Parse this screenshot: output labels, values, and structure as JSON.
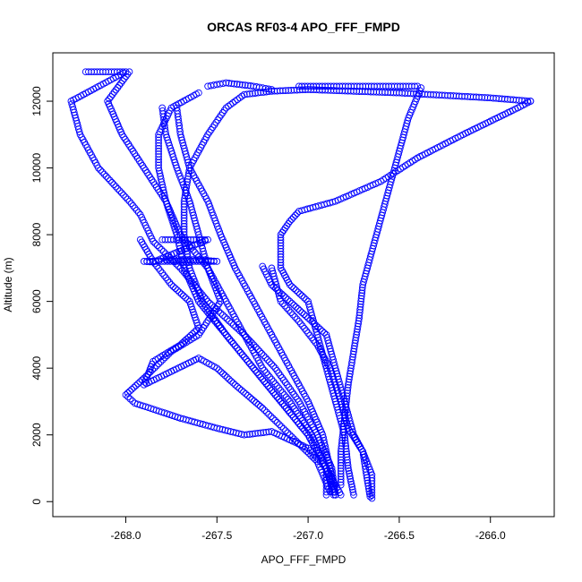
{
  "chart_data": {
    "type": "scatter",
    "title": "ORCAS RF03-4 APO_FFF_FMPD",
    "xlabel": "APO_FFF_FMPD",
    "ylabel": "Altitude (m)",
    "xlim": [
      -268.4,
      -265.65
    ],
    "ylim": [
      -450,
      13450
    ],
    "xticks": [
      -268.0,
      -267.5,
      -267.0,
      -266.5,
      -266.0
    ],
    "xtick_labels": [
      "-268.0",
      "-267.5",
      "-267.0",
      "-266.5",
      "-266.0"
    ],
    "yticks": [
      0,
      2000,
      4000,
      6000,
      8000,
      10000,
      12000
    ],
    "ytick_labels": [
      "0",
      "2000",
      "4000",
      "6000",
      "8000",
      "10000",
      "12000"
    ],
    "marker": "open-circle",
    "point_color": "#0000ff",
    "grid": false,
    "series": [
      {
        "profile": "far-left-descent",
        "points": [
          [
            -268.22,
            12880
          ],
          [
            -268.0,
            12880
          ],
          [
            -268.3,
            12000
          ],
          [
            -268.25,
            11000
          ],
          [
            -268.15,
            10000
          ],
          [
            -267.98,
            9000
          ],
          [
            -267.92,
            8600
          ],
          [
            -267.85,
            7800
          ],
          [
            -267.7,
            7000
          ],
          [
            -267.55,
            6000
          ],
          [
            -267.35,
            5000
          ],
          [
            -267.18,
            4000
          ],
          [
            -267.05,
            3000
          ],
          [
            -266.95,
            2000
          ],
          [
            -266.87,
            1000
          ],
          [
            -266.85,
            200
          ]
        ]
      },
      {
        "profile": "left-loop-low",
        "points": [
          [
            -267.98,
            12880
          ],
          [
            -268.1,
            12000
          ],
          [
            -268.02,
            11000
          ],
          [
            -267.9,
            10000
          ],
          [
            -267.78,
            9000
          ],
          [
            -267.7,
            8000
          ],
          [
            -267.55,
            7000
          ],
          [
            -267.48,
            6000
          ],
          [
            -267.6,
            5000
          ],
          [
            -267.75,
            4500
          ],
          [
            -267.9,
            3700
          ],
          [
            -268.0,
            3200
          ],
          [
            -267.95,
            2950
          ],
          [
            -267.7,
            2500
          ],
          [
            -267.5,
            2200
          ],
          [
            -267.35,
            2000
          ],
          [
            -267.2,
            2100
          ],
          [
            -267.0,
            1600
          ],
          [
            -266.9,
            1000
          ],
          [
            -266.9,
            200
          ]
        ]
      },
      {
        "profile": "left-loop-mid",
        "points": [
          [
            -267.92,
            7850
          ],
          [
            -267.85,
            7200
          ],
          [
            -267.75,
            6500
          ],
          [
            -267.65,
            6000
          ],
          [
            -267.6,
            5200
          ],
          [
            -267.7,
            4700
          ],
          [
            -267.85,
            4200
          ],
          [
            -267.9,
            3500
          ],
          [
            -267.75,
            3900
          ],
          [
            -267.6,
            4300
          ],
          [
            -267.5,
            4000
          ],
          [
            -267.4,
            3500
          ],
          [
            -267.25,
            2800
          ],
          [
            -267.1,
            2000
          ],
          [
            -266.95,
            1200
          ],
          [
            -266.88,
            300
          ]
        ]
      },
      {
        "profile": "upper-steep-descent",
        "points": [
          [
            -267.6,
            12250
          ],
          [
            -267.75,
            11800
          ],
          [
            -267.82,
            11000
          ],
          [
            -267.82,
            10000
          ],
          [
            -267.78,
            9000
          ],
          [
            -267.72,
            8000
          ],
          [
            -267.68,
            7000
          ],
          [
            -267.6,
            6000
          ],
          [
            -267.45,
            5000
          ],
          [
            -267.3,
            4000
          ],
          [
            -267.15,
            3000
          ],
          [
            -267.0,
            2000
          ],
          [
            -266.9,
            1000
          ],
          [
            -266.82,
            200
          ]
        ]
      },
      {
        "profile": "inner-descent-1",
        "points": [
          [
            -267.8,
            11800
          ],
          [
            -267.78,
            11000
          ],
          [
            -267.72,
            10000
          ],
          [
            -267.65,
            9000
          ],
          [
            -267.6,
            8000
          ],
          [
            -267.55,
            7000
          ],
          [
            -267.45,
            6000
          ],
          [
            -267.35,
            5000
          ],
          [
            -267.25,
            4000
          ],
          [
            -267.1,
            3000
          ],
          [
            -266.98,
            2000
          ],
          [
            -266.9,
            1000
          ],
          [
            -266.86,
            200
          ]
        ]
      },
      {
        "profile": "inner-descent-2",
        "points": [
          [
            -267.72,
            11800
          ],
          [
            -267.7,
            11000
          ],
          [
            -267.65,
            10000
          ],
          [
            -267.55,
            9000
          ],
          [
            -267.48,
            8000
          ],
          [
            -267.4,
            7000
          ],
          [
            -267.3,
            6000
          ],
          [
            -267.2,
            5000
          ],
          [
            -267.1,
            4000
          ],
          [
            -267.0,
            3000
          ],
          [
            -266.92,
            2000
          ],
          [
            -266.88,
            1000
          ],
          [
            -266.85,
            200
          ]
        ]
      },
      {
        "profile": "ascent-to-top",
        "points": [
          [
            -266.85,
            200
          ],
          [
            -266.9,
            1000
          ],
          [
            -267.0,
            2000
          ],
          [
            -267.15,
            3000
          ],
          [
            -267.3,
            4000
          ],
          [
            -267.45,
            5000
          ],
          [
            -267.58,
            6000
          ],
          [
            -267.65,
            7000
          ],
          [
            -267.68,
            8000
          ],
          [
            -267.68,
            9000
          ],
          [
            -267.65,
            10000
          ],
          [
            -267.55,
            11000
          ],
          [
            -267.45,
            11800
          ],
          [
            -267.35,
            12200
          ],
          [
            -267.2,
            12300
          ],
          [
            -267.0,
            12350
          ],
          [
            -266.5,
            12250
          ],
          [
            -266.0,
            12100
          ],
          [
            -265.78,
            12000
          ]
        ]
      },
      {
        "profile": "right-diagonal-descent",
        "points": [
          [
            -265.78,
            12000
          ],
          [
            -265.85,
            11800
          ],
          [
            -266.0,
            11400
          ],
          [
            -266.15,
            11000
          ],
          [
            -266.4,
            10300
          ],
          [
            -266.6,
            9600
          ],
          [
            -266.85,
            9000
          ],
          [
            -267.05,
            8700
          ],
          [
            -267.1,
            8400
          ],
          [
            -267.15,
            8000
          ],
          [
            -267.15,
            7000
          ],
          [
            -267.1,
            6500
          ],
          [
            -267.0,
            6000
          ],
          [
            -266.95,
            5000
          ],
          [
            -266.9,
            4000
          ],
          [
            -266.85,
            3000
          ],
          [
            -266.8,
            2000
          ],
          [
            -266.78,
            1000
          ],
          [
            -266.75,
            200
          ]
        ]
      },
      {
        "profile": "top-right-plateau",
        "points": [
          [
            -267.05,
            12450
          ],
          [
            -266.7,
            12450
          ],
          [
            -266.4,
            12450
          ],
          [
            -266.38,
            12400
          ],
          [
            -266.45,
            11500
          ],
          [
            -266.5,
            10500
          ],
          [
            -266.55,
            9500
          ],
          [
            -266.6,
            8500
          ],
          [
            -266.65,
            7500
          ],
          [
            -266.7,
            6500
          ],
          [
            -266.72,
            5500
          ],
          [
            -266.75,
            4500
          ],
          [
            -266.78,
            3500
          ],
          [
            -266.8,
            2500
          ],
          [
            -266.82,
            1500
          ],
          [
            -266.82,
            500
          ]
        ]
      },
      {
        "profile": "right-inner-descent",
        "points": [
          [
            -267.25,
            7050
          ],
          [
            -267.2,
            6500
          ],
          [
            -267.1,
            6000
          ],
          [
            -267.0,
            5500
          ],
          [
            -266.9,
            5000
          ],
          [
            -266.85,
            4000
          ],
          [
            -266.8,
            3000
          ],
          [
            -266.75,
            2000
          ],
          [
            -266.7,
            1500
          ],
          [
            -266.68,
            800
          ],
          [
            -266.66,
            150
          ]
        ]
      },
      {
        "profile": "right-steep-descent",
        "points": [
          [
            -267.2,
            7000
          ],
          [
            -267.15,
            6000
          ],
          [
            -267.05,
            5400
          ],
          [
            -266.95,
            4700
          ],
          [
            -266.88,
            4000
          ],
          [
            -266.82,
            3000
          ],
          [
            -266.78,
            2200
          ],
          [
            -266.7,
            1500
          ],
          [
            -266.65,
            800
          ],
          [
            -266.65,
            100
          ]
        ]
      },
      {
        "profile": "mid-level-legs",
        "points": [
          [
            -267.78,
            7250
          ],
          [
            -267.6,
            7250
          ],
          [
            -267.5,
            7200
          ],
          [
            -267.9,
            7200
          ],
          [
            -267.85,
            7180
          ],
          [
            -267.55,
            7850
          ],
          [
            -267.8,
            7850
          ]
        ]
      },
      {
        "profile": "upper-mid-leg",
        "points": [
          [
            -267.55,
            12450
          ],
          [
            -267.45,
            12550
          ],
          [
            -267.3,
            12450
          ],
          [
            -267.2,
            12350
          ]
        ]
      }
    ]
  }
}
